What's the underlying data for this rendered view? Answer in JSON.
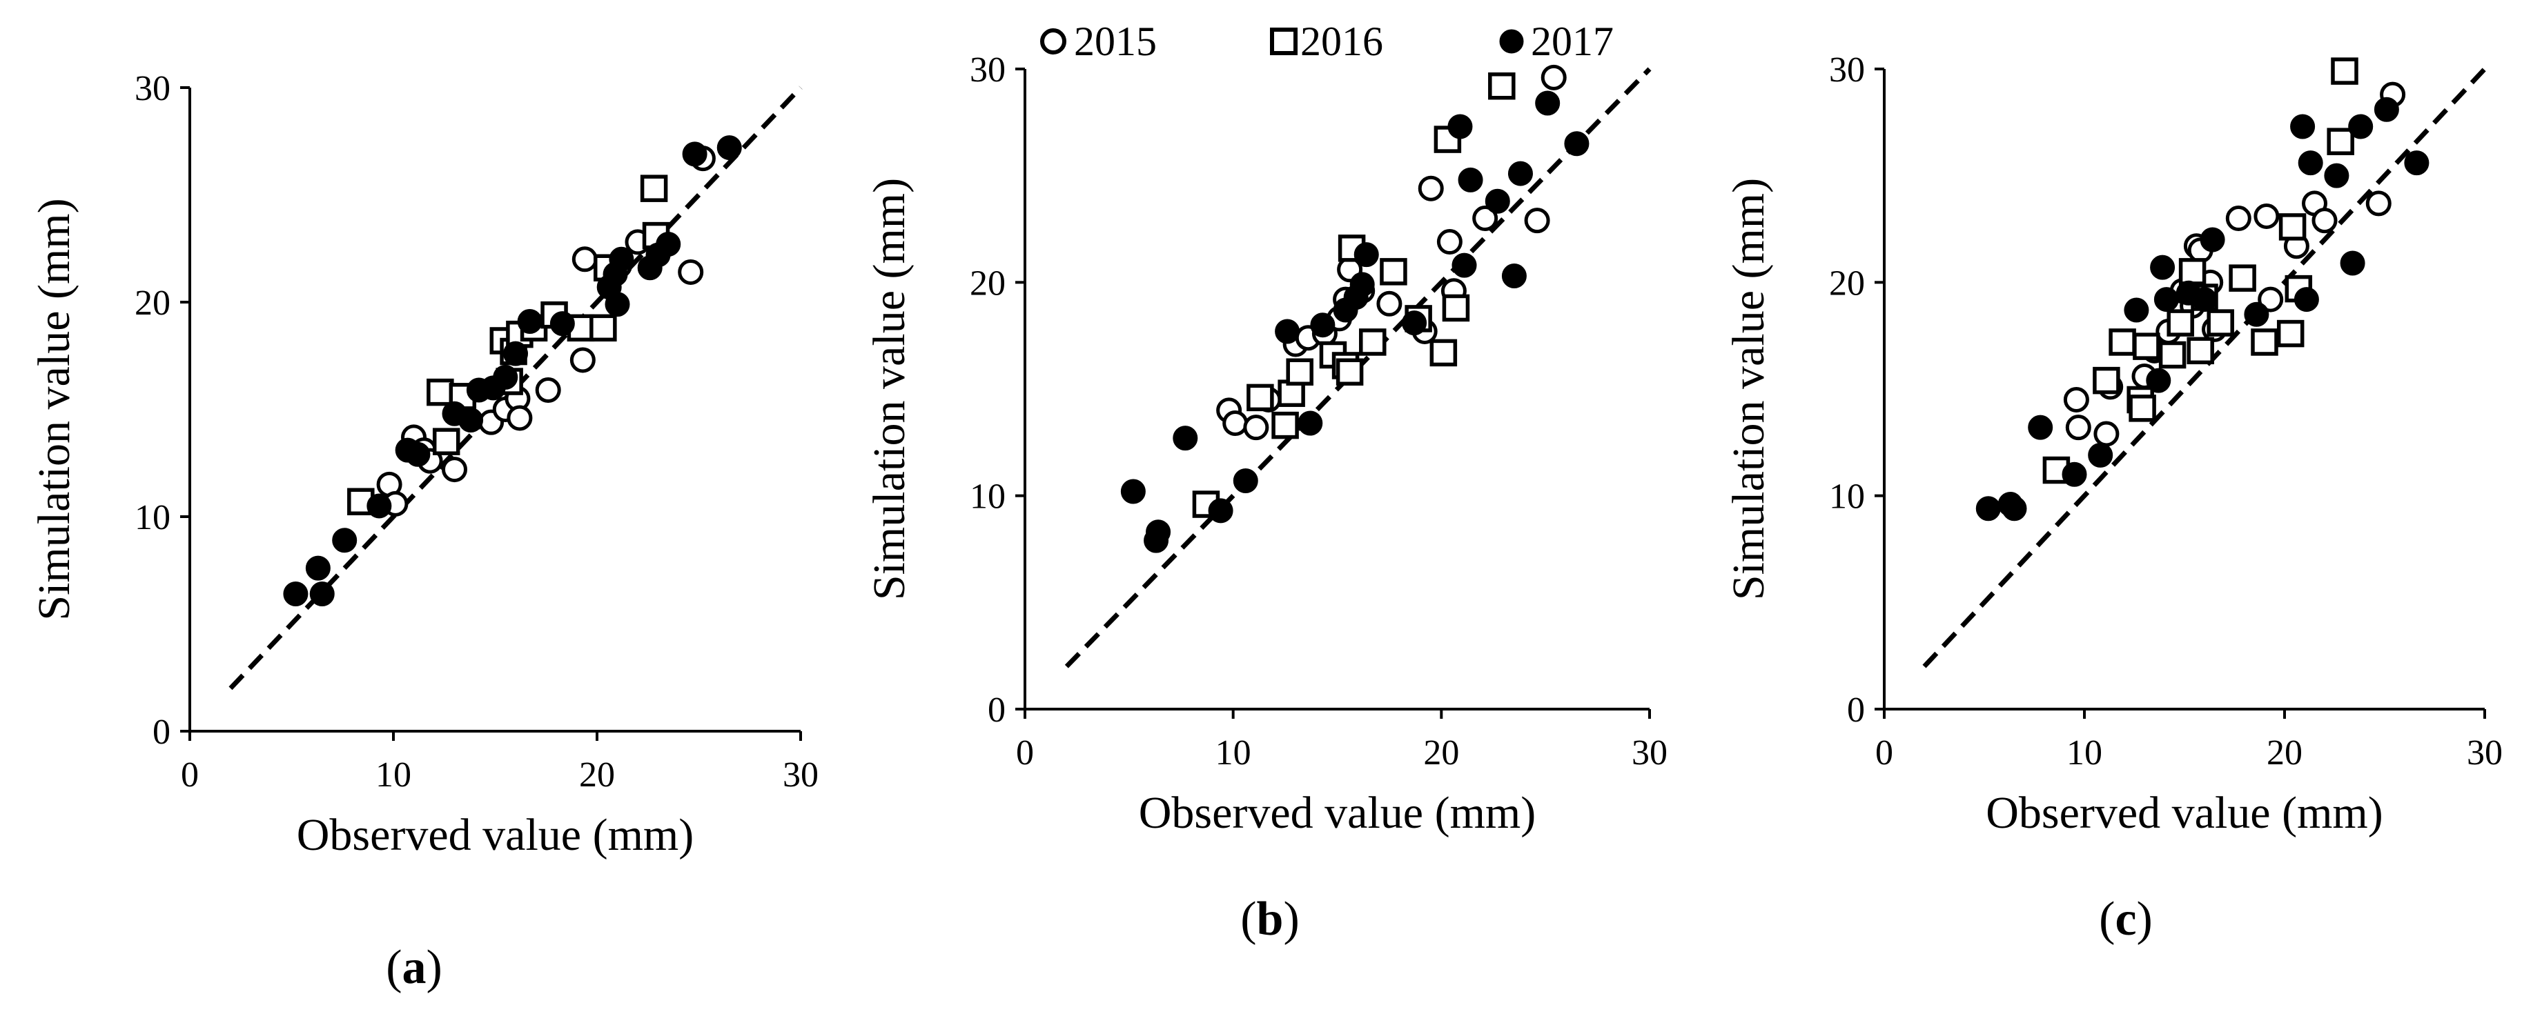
{
  "legend": [
    {
      "name": "2015",
      "marker": "open-circle"
    },
    {
      "name": "2016",
      "marker": "open-square"
    },
    {
      "name": "2017",
      "marker": "filled-circle"
    }
  ],
  "colors": {
    "marker": "#000000",
    "background": "#ffffff"
  },
  "chart_data": [
    {
      "type": "scatter",
      "panel_label": "(a)",
      "xlabel": "Observed value (mm)",
      "ylabel": "Simulation value (mm)",
      "xlim": [
        0,
        30
      ],
      "ylim": [
        0,
        30
      ],
      "xticks": [
        0,
        10,
        20,
        30
      ],
      "yticks": [
        0,
        10,
        20,
        30
      ],
      "reference_line": {
        "style": "dashed",
        "from": [
          2,
          2
        ],
        "to": [
          30,
          30
        ]
      },
      "series": [
        {
          "name": "2015",
          "marker": "open-circle",
          "points": [
            [
              9.8,
              11.5
            ],
            [
              10.1,
              10.6
            ],
            [
              11.0,
              13.7
            ],
            [
              11.5,
              13.1
            ],
            [
              11.8,
              12.6
            ],
            [
              13.0,
              12.2
            ],
            [
              14.8,
              14.4
            ],
            [
              15.5,
              15.0
            ],
            [
              16.1,
              15.5
            ],
            [
              16.2,
              14.6
            ],
            [
              17.6,
              15.9
            ],
            [
              19.3,
              17.3
            ],
            [
              19.4,
              22.0
            ],
            [
              21.1,
              21.7
            ],
            [
              22.0,
              22.8
            ],
            [
              24.6,
              21.4
            ],
            [
              25.2,
              26.7
            ]
          ]
        },
        {
          "name": "2016",
          "marker": "open-square",
          "points": [
            [
              8.4,
              10.7
            ],
            [
              12.3,
              15.8
            ],
            [
              12.6,
              13.5
            ],
            [
              13.4,
              15.6
            ],
            [
              15.4,
              18.2
            ],
            [
              15.7,
              16.3
            ],
            [
              15.9,
              17.7
            ],
            [
              16.2,
              18.5
            ],
            [
              16.9,
              18.8
            ],
            [
              17.9,
              19.4
            ],
            [
              19.2,
              18.8
            ],
            [
              20.3,
              18.8
            ],
            [
              20.5,
              21.6
            ],
            [
              22.8,
              25.3
            ],
            [
              22.9,
              23.1
            ]
          ]
        },
        {
          "name": "2017",
          "marker": "filled-circle",
          "points": [
            [
              5.2,
              6.4
            ],
            [
              6.3,
              7.6
            ],
            [
              6.5,
              6.4
            ],
            [
              7.6,
              8.9
            ],
            [
              9.3,
              10.5
            ],
            [
              10.7,
              13.1
            ],
            [
              11.2,
              12.9
            ],
            [
              13.0,
              14.8
            ],
            [
              13.8,
              14.5
            ],
            [
              14.2,
              15.9
            ],
            [
              14.9,
              16.0
            ],
            [
              15.5,
              16.5
            ],
            [
              16.0,
              17.6
            ],
            [
              16.7,
              19.1
            ],
            [
              18.3,
              19.0
            ],
            [
              20.6,
              20.7
            ],
            [
              20.9,
              21.3
            ],
            [
              21.0,
              19.9
            ],
            [
              21.2,
              22.0
            ],
            [
              22.6,
              21.6
            ],
            [
              23.0,
              22.2
            ],
            [
              23.5,
              22.7
            ],
            [
              24.8,
              26.9
            ],
            [
              26.5,
              27.2
            ]
          ]
        }
      ]
    },
    {
      "type": "scatter",
      "panel_label": "(b)",
      "xlabel": "Observed value (mm)",
      "ylabel": "Simulation value (mm)",
      "xlim": [
        0,
        30
      ],
      "ylim": [
        0,
        30
      ],
      "xticks": [
        0,
        10,
        20,
        30
      ],
      "yticks": [
        0,
        10,
        20,
        30
      ],
      "reference_line": {
        "style": "dashed",
        "from": [
          2,
          2
        ],
        "to": [
          30,
          30
        ]
      },
      "series": [
        {
          "name": "2015",
          "marker": "open-circle",
          "points": [
            [
              9.8,
              14.0
            ],
            [
              10.1,
              13.4
            ],
            [
              11.1,
              13.2
            ],
            [
              11.7,
              14.5
            ],
            [
              13.0,
              17.1
            ],
            [
              13.6,
              17.4
            ],
            [
              14.4,
              17.6
            ],
            [
              15.1,
              18.3
            ],
            [
              15.4,
              19.2
            ],
            [
              15.6,
              20.6
            ],
            [
              16.2,
              19.6
            ],
            [
              17.5,
              19.0
            ],
            [
              19.2,
              17.7
            ],
            [
              19.5,
              24.4
            ],
            [
              20.4,
              21.9
            ],
            [
              20.6,
              19.6
            ],
            [
              22.1,
              23.0
            ],
            [
              24.6,
              22.9
            ],
            [
              25.4,
              29.6
            ]
          ]
        },
        {
          "name": "2016",
          "marker": "open-square",
          "points": [
            [
              8.7,
              9.6
            ],
            [
              11.3,
              14.6
            ],
            [
              12.5,
              13.3
            ],
            [
              12.8,
              14.8
            ],
            [
              13.2,
              15.8
            ],
            [
              14.8,
              16.6
            ],
            [
              15.4,
              16.1
            ],
            [
              15.6,
              15.8
            ],
            [
              15.7,
              21.6
            ],
            [
              16.7,
              17.2
            ],
            [
              17.7,
              20.5
            ],
            [
              18.9,
              18.3
            ],
            [
              20.1,
              16.7
            ],
            [
              20.3,
              26.7
            ],
            [
              20.7,
              18.8
            ],
            [
              22.9,
              29.2
            ]
          ]
        },
        {
          "name": "2017",
          "marker": "filled-circle",
          "points": [
            [
              5.2,
              10.2
            ],
            [
              6.3,
              7.9
            ],
            [
              6.4,
              8.3
            ],
            [
              7.7,
              12.7
            ],
            [
              9.4,
              9.3
            ],
            [
              10.6,
              10.7
            ],
            [
              12.6,
              17.7
            ],
            [
              13.7,
              13.4
            ],
            [
              14.3,
              18.0
            ],
            [
              15.4,
              18.7
            ],
            [
              15.9,
              19.3
            ],
            [
              16.2,
              19.9
            ],
            [
              16.4,
              21.3
            ],
            [
              18.7,
              18.1
            ],
            [
              20.9,
              27.3
            ],
            [
              21.1,
              20.8
            ],
            [
              21.4,
              24.8
            ],
            [
              22.7,
              23.8
            ],
            [
              23.5,
              20.3
            ],
            [
              23.8,
              25.1
            ],
            [
              25.1,
              28.4
            ],
            [
              26.5,
              26.5
            ]
          ]
        }
      ]
    },
    {
      "type": "scatter",
      "panel_label": "(c)",
      "xlabel": "Observed value (mm)",
      "ylabel": "Simulation value (mm)",
      "xlim": [
        0,
        30
      ],
      "ylim": [
        0,
        30
      ],
      "xticks": [
        0,
        10,
        20,
        30
      ],
      "yticks": [
        0,
        10,
        20,
        30
      ],
      "reference_line": {
        "style": "dashed",
        "from": [
          2,
          2
        ],
        "to": [
          30,
          30
        ]
      },
      "series": [
        {
          "name": "2015",
          "marker": "open-circle",
          "points": [
            [
              9.6,
              14.5
            ],
            [
              9.7,
              13.2
            ],
            [
              11.1,
              12.9
            ],
            [
              11.3,
              15.1
            ],
            [
              13.0,
              15.6
            ],
            [
              13.5,
              16.8
            ],
            [
              14.2,
              17.7
            ],
            [
              14.9,
              19.6
            ],
            [
              15.4,
              18.9
            ],
            [
              15.6,
              21.7
            ],
            [
              15.8,
              21.5
            ],
            [
              16.3,
              20.0
            ],
            [
              16.5,
              17.8
            ],
            [
              17.7,
              23.0
            ],
            [
              19.1,
              23.1
            ],
            [
              19.3,
              19.2
            ],
            [
              20.6,
              21.7
            ],
            [
              21.5,
              23.7
            ],
            [
              22.0,
              22.9
            ],
            [
              24.7,
              23.7
            ],
            [
              25.4,
              28.8
            ]
          ]
        },
        {
          "name": "2016",
          "marker": "open-square",
          "points": [
            [
              8.6,
              11.2
            ],
            [
              11.1,
              15.4
            ],
            [
              11.9,
              17.2
            ],
            [
              12.8,
              14.5
            ],
            [
              12.9,
              14.1
            ],
            [
              13.1,
              17.0
            ],
            [
              14.4,
              16.6
            ],
            [
              14.8,
              18.1
            ],
            [
              15.4,
              20.5
            ],
            [
              15.8,
              16.8
            ],
            [
              16.0,
              19.3
            ],
            [
              16.8,
              18.1
            ],
            [
              17.9,
              20.2
            ],
            [
              19.0,
              17.2
            ],
            [
              20.3,
              17.6
            ],
            [
              20.4,
              22.6
            ],
            [
              20.7,
              19.7
            ],
            [
              22.8,
              26.6
            ],
            [
              23.0,
              29.9
            ]
          ]
        },
        {
          "name": "2017",
          "marker": "filled-circle",
          "points": [
            [
              5.2,
              9.4
            ],
            [
              6.3,
              9.6
            ],
            [
              6.5,
              9.4
            ],
            [
              7.8,
              13.2
            ],
            [
              9.5,
              11.0
            ],
            [
              10.8,
              11.9
            ],
            [
              12.6,
              18.7
            ],
            [
              13.7,
              15.4
            ],
            [
              13.9,
              20.7
            ],
            [
              14.1,
              19.2
            ],
            [
              15.2,
              19.5
            ],
            [
              16.0,
              19.2
            ],
            [
              16.4,
              22.0
            ],
            [
              18.6,
              18.5
            ],
            [
              20.9,
              27.3
            ],
            [
              21.1,
              19.2
            ],
            [
              21.3,
              25.6
            ],
            [
              22.6,
              25.0
            ],
            [
              23.4,
              20.9
            ],
            [
              23.8,
              27.3
            ],
            [
              25.1,
              28.1
            ],
            [
              26.6,
              25.6
            ]
          ]
        }
      ]
    }
  ]
}
